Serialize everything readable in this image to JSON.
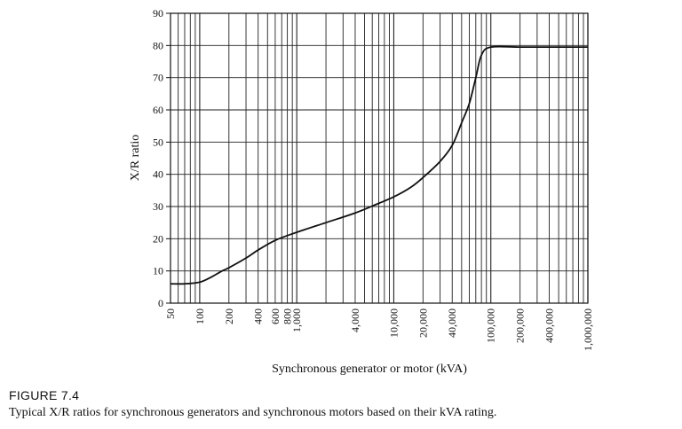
{
  "chart_data": {
    "type": "line",
    "x_scale": "log",
    "xlabel": "Synchronous generator or motor (kVA)",
    "ylabel": "X/R ratio",
    "xlim": [
      50,
      1000000
    ],
    "ylim": [
      0,
      90
    ],
    "y_ticks": [
      0,
      10,
      20,
      30,
      40,
      50,
      60,
      70,
      80,
      90
    ],
    "x_tick_labels": [
      {
        "value": 50,
        "label": "50"
      },
      {
        "value": 100,
        "label": "100"
      },
      {
        "value": 200,
        "label": "200"
      },
      {
        "value": 400,
        "label": "400"
      },
      {
        "value": 600,
        "label": "600"
      },
      {
        "value": 800,
        "label": "800"
      },
      {
        "value": 1000,
        "label": "1,000"
      },
      {
        "value": 4000,
        "label": "4,000"
      },
      {
        "value": 10000,
        "label": "10,000"
      },
      {
        "value": 20000,
        "label": "20,000"
      },
      {
        "value": 40000,
        "label": "40,000"
      },
      {
        "value": 100000,
        "label": "100,000"
      },
      {
        "value": 200000,
        "label": "200,000"
      },
      {
        "value": 400000,
        "label": "400,000"
      },
      {
        "value": 1000000,
        "label": "1,000,000"
      }
    ],
    "grid": true,
    "line_color": "#111111",
    "series": [
      {
        "x": [
          50,
          70,
          100,
          130,
          170,
          200,
          300,
          400,
          600,
          1000,
          2000,
          4000,
          7000,
          10000,
          15000,
          20000,
          30000,
          40000,
          50000,
          60000,
          70000,
          80000,
          100000,
          200000,
          400000,
          1000000
        ],
        "y": [
          6,
          6,
          6.5,
          8,
          10,
          11,
          14,
          16.5,
          19.5,
          22,
          25,
          28,
          31,
          33,
          36,
          39,
          44,
          49,
          56,
          62,
          70,
          77,
          79.5,
          79.5,
          79.5,
          79.5
        ]
      }
    ]
  },
  "figure": {
    "label": "FIGURE 7.4",
    "caption": "Typical X/R ratios for synchronous generators and synchronous motors based on their kVA rating."
  }
}
